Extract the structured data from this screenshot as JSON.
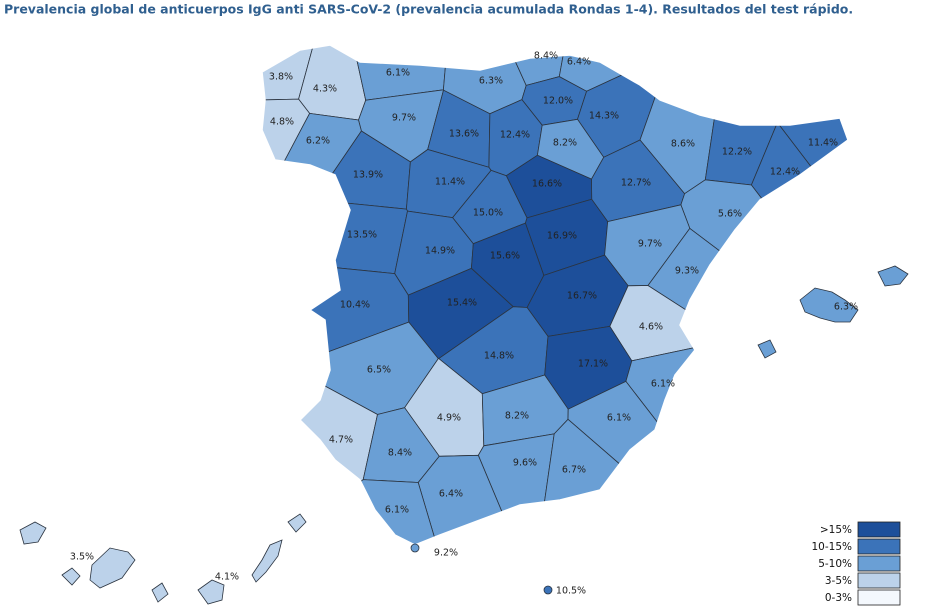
{
  "chart_data": {
    "type": "choropleth",
    "title": "Prevalencia global de anticuerpos IgG anti SARS-CoV-2 (prevalencia acumulada Rondas 1-4). Resultados del test rápido.",
    "values": [
      3.8,
      4.3,
      6.1,
      6.3,
      8.4,
      6.4,
      12.0,
      14.3,
      9.7,
      4.8,
      6.2,
      13.6,
      12.4,
      8.2,
      8.6,
      12.2,
      11.4,
      12.4,
      12.7,
      13.9,
      11.4,
      16.6,
      15.0,
      5.6,
      13.5,
      14.9,
      16.9,
      9.7,
      15.6,
      9.3,
      10.4,
      15.4,
      16.7,
      4.6,
      6.3,
      14.8,
      17.1,
      6.5,
      6.1,
      4.9,
      8.2,
      6.1,
      4.7,
      8.4,
      9.6,
      6.7,
      6.4,
      6.1,
      9.2,
      3.5,
      4.1,
      10.5
    ],
    "value_labels": [
      "3.8%",
      "4.3%",
      "6.1%",
      "6.3%",
      "8.4%",
      "6.4%",
      "12.0%",
      "14.3%",
      "9.7%",
      "4.8%",
      "6.2%",
      "13.6%",
      "12.4%",
      "8.2%",
      "8.6%",
      "12.2%",
      "11.4%",
      "12.4%",
      "12.7%",
      "13.9%",
      "11.4%",
      "16.6%",
      "15.0%",
      "5.6%",
      "13.5%",
      "14.9%",
      "16.9%",
      "9.7%",
      "15.6%",
      "9.3%",
      "10.4%",
      "15.4%",
      "16.7%",
      "4.6%",
      "6.3%",
      "14.8%",
      "17.1%",
      "6.5%",
      "6.1%",
      "4.9%",
      "8.2%",
      "6.1%",
      "4.7%",
      "8.4%",
      "9.6%",
      "6.7%",
      "6.4%",
      "6.1%",
      "9.2%",
      "3.5%",
      "4.1%",
      "10.5%"
    ],
    "colors": [
      "#bcd2ea",
      "#bcd2ea",
      "#6a9fd5",
      "#6a9fd5",
      "#6a9fd5",
      "#6a9fd5",
      "#3b73b9",
      "#3b73b9",
      "#6a9fd5",
      "#bcd2ea",
      "#6a9fd5",
      "#3b73b9",
      "#3b73b9",
      "#6a9fd5",
      "#6a9fd5",
      "#3b73b9",
      "#3b73b9",
      "#3b73b9",
      "#3b73b9",
      "#3b73b9",
      "#3b73b9",
      "#1d4f9a",
      "#3b73b9",
      "#6a9fd5",
      "#3b73b9",
      "#3b73b9",
      "#1d4f9a",
      "#6a9fd5",
      "#1d4f9a",
      "#6a9fd5",
      "#3b73b9",
      "#1d4f9a",
      "#1d4f9a",
      "#bcd2ea",
      "#6a9fd5",
      "#3b73b9",
      "#1d4f9a",
      "#6a9fd5",
      "#6a9fd5",
      "#bcd2ea",
      "#6a9fd5",
      "#6a9fd5",
      "#bcd2ea",
      "#6a9fd5",
      "#6a9fd5",
      "#6a9fd5",
      "#6a9fd5",
      "#6a9fd5",
      "#6a9fd5",
      "#bcd2ea",
      "#bcd2ea",
      "#3b73b9"
    ],
    "legend": [
      {
        "label": ">15%",
        "color": "#1d4f9a"
      },
      {
        "label": "10-15%",
        "color": "#3b73b9"
      },
      {
        "label": "5-10%",
        "color": "#6a9fd5"
      },
      {
        "label": "3-5%",
        "color": "#bcd2ea"
      },
      {
        "label": "0-3%",
        "color": "#f4f8fd"
      }
    ]
  }
}
